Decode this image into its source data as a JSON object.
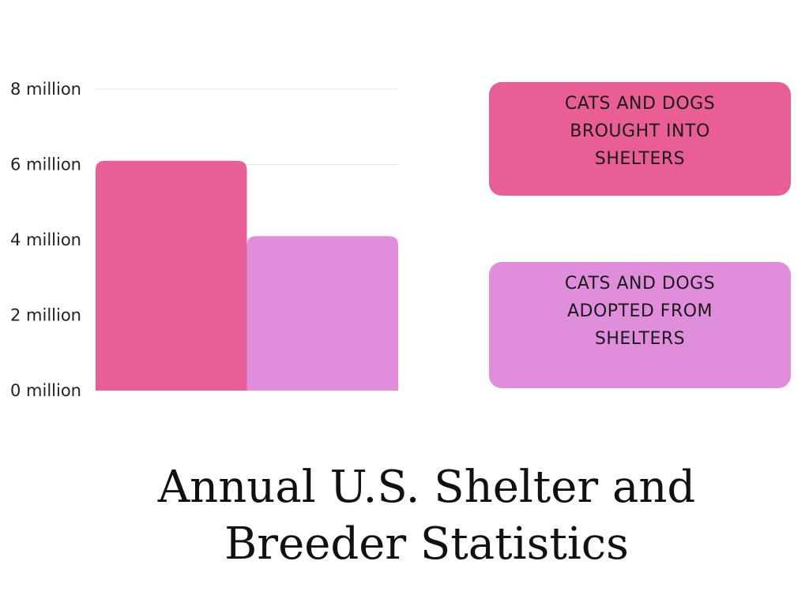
{
  "chart_data": {
    "type": "bar",
    "title_lines": [
      "Annual U.S. Shelter and",
      "Breeder Statistics"
    ],
    "categories": [
      "Cats and dogs brought into shelters",
      "Cats and dogs adopted from shelters"
    ],
    "series": [
      {
        "name": "CATS AND DOGS BROUGHT INTO SHELTERS",
        "value": 6.1,
        "color": "#E95E95"
      },
      {
        "name": "CATS AND DOGS ADOPTED FROM SHELTERS",
        "value": 4.1,
        "color": "#E08EDB"
      }
    ],
    "unit": "million",
    "ylim": [
      0,
      8
    ],
    "yticks": [
      {
        "value": 8,
        "label": "8 million"
      },
      {
        "value": 6,
        "label": "6 million"
      },
      {
        "value": 4,
        "label": "4 million"
      },
      {
        "value": 2,
        "label": "2 million"
      },
      {
        "value": 0,
        "label": "0 million"
      }
    ],
    "grid": true,
    "legend": [
      {
        "lines": [
          "CATS AND DOGS",
          "BROUGHT INTO",
          "SHELTERS"
        ],
        "color": "#E95E95"
      },
      {
        "lines": [
          "CATS AND DOGS",
          "ADOPTED FROM",
          "SHELTERS"
        ],
        "color": "#E08EDB"
      }
    ],
    "legend_position": "right"
  }
}
